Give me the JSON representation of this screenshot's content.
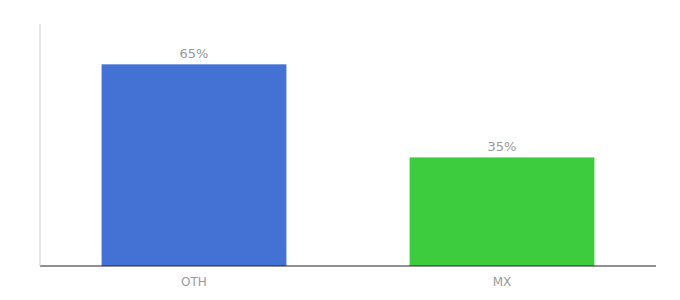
{
  "chart_data": {
    "type": "bar",
    "categories": [
      "OTH",
      "MX"
    ],
    "values": [
      65,
      35
    ],
    "value_labels": [
      "65%",
      "35%"
    ],
    "colors": [
      "#4472d4",
      "#3dcc3d"
    ],
    "ylim": [
      0,
      78
    ],
    "yticks": [],
    "grid": false,
    "data_labels": true,
    "tick_labels": "x"
  }
}
